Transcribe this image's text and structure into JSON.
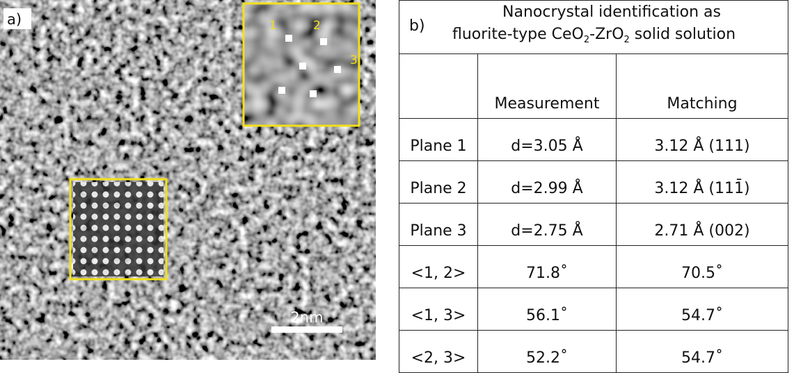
{
  "panel_a": {
    "label": "a)",
    "inset_spots": [
      "1",
      "2",
      "3"
    ],
    "scale_bar": "2nm"
  },
  "panel_b": {
    "label": "b)",
    "title_line1": "Nanocrystal identification as",
    "title_line2": [
      "fluorite-type CeO",
      "2",
      "-ZrO",
      "2",
      " solid solution"
    ],
    "table": {
      "header": [
        "Measurement",
        "Matching"
      ],
      "rows": [
        [
          "Plane 1",
          "d=3.05 Å",
          "3.12 Å (111)"
        ],
        [
          "Plane 2",
          "d=2.99 Å",
          "3.12 Å (111̄)"
        ],
        [
          "Plane 3",
          "d=2.75 Å",
          "2.71 Å (002)"
        ],
        [
          "<1, 2>",
          "71.8˚",
          "70.5˚"
        ],
        [
          "<1, 3>",
          "56.1˚",
          "54.7˚"
        ],
        [
          "<2, 3>",
          "52.2˚",
          "54.7˚"
        ]
      ]
    }
  }
}
